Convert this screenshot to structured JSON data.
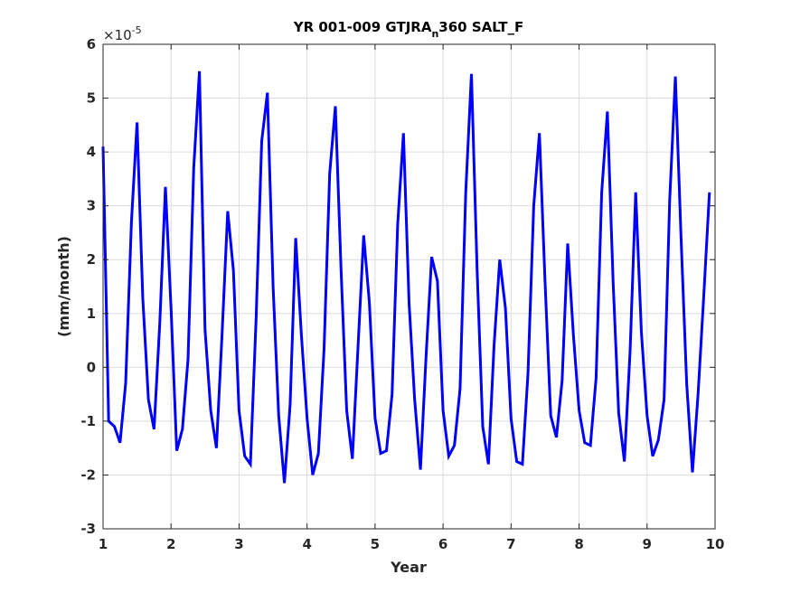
{
  "chart_data": {
    "type": "line",
    "title": {
      "before": "YR 001-009 GTJRA",
      "subscript": "n",
      "after": "360 SALT_F"
    },
    "xlabel": "Year",
    "ylabel": "(mm/month)",
    "exponent": {
      "base": "×10",
      "power": "-5"
    },
    "xlim": [
      1,
      10
    ],
    "ylim": [
      -3,
      6
    ],
    "xticks": [
      1,
      2,
      3,
      4,
      5,
      6,
      7,
      8,
      9,
      10
    ],
    "yticks": [
      -3,
      -2,
      -1,
      0,
      1,
      2,
      3,
      4,
      5,
      6
    ],
    "grid": true,
    "series": [
      {
        "color": "#0000ff",
        "x": [
          1.0,
          1.083,
          1.167,
          1.25,
          1.333,
          1.417,
          1.5,
          1.583,
          1.667,
          1.75,
          1.833,
          1.917,
          2.0,
          2.083,
          2.167,
          2.25,
          2.333,
          2.417,
          2.5,
          2.583,
          2.667,
          2.75,
          2.833,
          2.917,
          3.0,
          3.083,
          3.167,
          3.25,
          3.333,
          3.417,
          3.5,
          3.583,
          3.667,
          3.75,
          3.833,
          3.917,
          4.0,
          4.083,
          4.167,
          4.25,
          4.333,
          4.417,
          4.5,
          4.583,
          4.667,
          4.75,
          4.833,
          4.917,
          5.0,
          5.083,
          5.167,
          5.25,
          5.333,
          5.417,
          5.5,
          5.583,
          5.667,
          5.75,
          5.833,
          5.917,
          6.0,
          6.083,
          6.167,
          6.25,
          6.333,
          6.417,
          6.5,
          6.583,
          6.667,
          6.75,
          6.833,
          6.917,
          7.0,
          7.083,
          7.167,
          7.25,
          7.333,
          7.417,
          7.5,
          7.583,
          7.667,
          7.75,
          7.833,
          7.917,
          8.0,
          8.083,
          8.167,
          8.25,
          8.333,
          8.417,
          8.5,
          8.583,
          8.667,
          8.75,
          8.833,
          8.917,
          9.0,
          9.083,
          9.167,
          9.25,
          9.333,
          9.417,
          9.5,
          9.583,
          9.667,
          9.75,
          9.833,
          9.917
        ],
        "y": [
          4.1,
          -1.0,
          -1.1,
          -1.4,
          -0.3,
          2.7,
          4.55,
          1.3,
          -0.6,
          -1.15,
          0.8,
          3.35,
          1.1,
          -1.55,
          -1.15,
          0.15,
          3.7,
          5.5,
          0.7,
          -0.8,
          -1.5,
          0.6,
          2.9,
          1.8,
          -0.8,
          -1.65,
          -1.8,
          0.9,
          4.2,
          5.1,
          1.5,
          -0.9,
          -2.15,
          -0.7,
          2.4,
          0.6,
          -0.95,
          -2.0,
          -1.6,
          0.35,
          3.6,
          4.85,
          1.8,
          -0.8,
          -1.7,
          0.4,
          2.45,
          1.2,
          -0.95,
          -1.6,
          -1.55,
          -0.5,
          2.65,
          4.35,
          1.2,
          -0.6,
          -1.9,
          0.2,
          2.05,
          1.6,
          -0.8,
          -1.65,
          -1.45,
          -0.4,
          3.25,
          5.45,
          1.85,
          -1.1,
          -1.8,
          0.4,
          2.0,
          1.1,
          -0.95,
          -1.75,
          -1.8,
          -0.1,
          3.0,
          4.35,
          1.6,
          -0.9,
          -1.3,
          -0.25,
          2.3,
          0.6,
          -0.8,
          -1.4,
          -1.45,
          -0.2,
          3.25,
          4.75,
          1.6,
          -0.85,
          -1.75,
          0.3,
          3.25,
          0.65,
          -0.9,
          -1.65,
          -1.35,
          -0.6,
          3.1,
          5.4,
          2.4,
          -0.3,
          -1.95,
          -0.5,
          1.3,
          3.25
        ]
      }
    ]
  }
}
